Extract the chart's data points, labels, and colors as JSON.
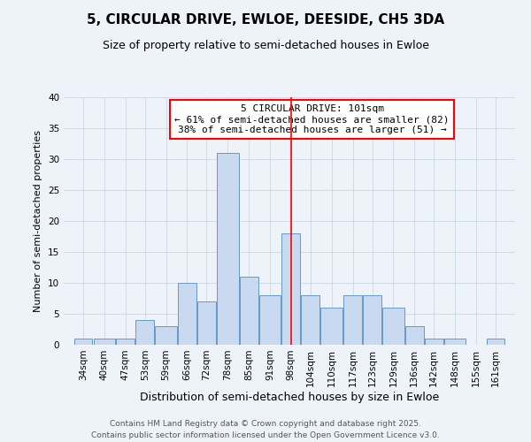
{
  "title": "5, CIRCULAR DRIVE, EWLOE, DEESIDE, CH5 3DA",
  "subtitle": "Size of property relative to semi-detached houses in Ewloe",
  "xlabel": "Distribution of semi-detached houses by size in Ewloe",
  "ylabel": "Number of semi-detached properties",
  "bin_labels": [
    "34sqm",
    "40sqm",
    "47sqm",
    "53sqm",
    "59sqm",
    "66sqm",
    "72sqm",
    "78sqm",
    "85sqm",
    "91sqm",
    "98sqm",
    "104sqm",
    "110sqm",
    "117sqm",
    "123sqm",
    "129sqm",
    "136sqm",
    "142sqm",
    "148sqm",
    "155sqm",
    "161sqm"
  ],
  "bin_edges": [
    34,
    40,
    47,
    53,
    59,
    66,
    72,
    78,
    85,
    91,
    98,
    104,
    110,
    117,
    123,
    129,
    136,
    142,
    148,
    155,
    161,
    167
  ],
  "counts": [
    1,
    1,
    1,
    4,
    3,
    10,
    7,
    31,
    11,
    8,
    18,
    8,
    6,
    8,
    8,
    6,
    3,
    1,
    1,
    0,
    1
  ],
  "bar_facecolor": "#c9d9f0",
  "bar_edgecolor": "#6699cc",
  "vline_x": 101,
  "vline_color": "red",
  "annotation_title": "5 CIRCULAR DRIVE: 101sqm",
  "annotation_line1": "← 61% of semi-detached houses are smaller (82)",
  "annotation_line2": "38% of semi-detached houses are larger (51) →",
  "annotation_box_edgecolor": "red",
  "ylim": [
    0,
    40
  ],
  "yticks": [
    0,
    5,
    10,
    15,
    20,
    25,
    30,
    35,
    40
  ],
  "grid_color": "#c8d8e8",
  "background_color": "#eef3f9",
  "footer_line1": "Contains HM Land Registry data © Crown copyright and database right 2025.",
  "footer_line2": "Contains public sector information licensed under the Open Government Licence v3.0.",
  "title_fontsize": 11,
  "subtitle_fontsize": 9,
  "xlabel_fontsize": 9,
  "ylabel_fontsize": 8,
  "tick_fontsize": 7.5,
  "annotation_fontsize": 8,
  "footer_fontsize": 6.5
}
